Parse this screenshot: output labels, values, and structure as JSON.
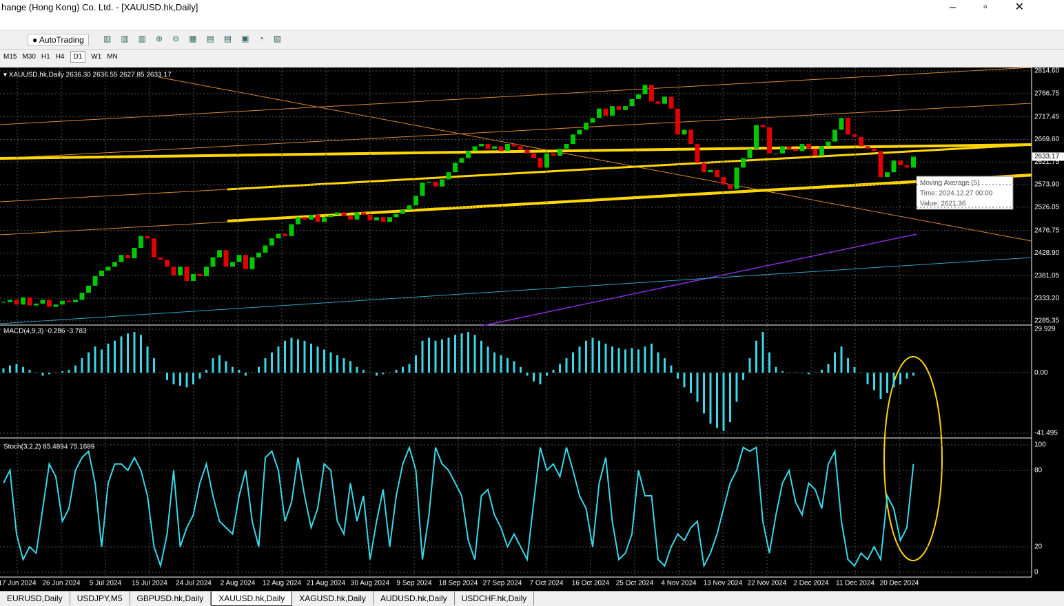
{
  "window": {
    "title": "hange (Hong Kong) Co. Ltd. - [XAUUSD.hk,Daily]"
  },
  "toolbar": {
    "autotrading": "AutoTrading",
    "timeframes": [
      "M15",
      "M30",
      "H1",
      "H4",
      "D1",
      "W1",
      "MN"
    ]
  },
  "chart": {
    "header": "XAUUSD.hk,Daily  2636.30 2636.55 2627.85 2633.17",
    "closes": [
      2325,
      2330,
      2320,
      2335,
      2318,
      2322,
      2330,
      2315,
      2320,
      2328,
      2325,
      2330,
      2345,
      2360,
      2380,
      2392,
      2400,
      2410,
      2425,
      2418,
      2440,
      2465,
      2460,
      2420,
      2415,
      2400,
      2382,
      2400,
      2370,
      2385,
      2380,
      2400,
      2420,
      2435,
      2400,
      2410,
      2425,
      2395,
      2420,
      2430,
      2445,
      2460,
      2470,
      2465,
      2490,
      2505,
      2500,
      2510,
      2495,
      2505,
      2510,
      2515,
      2508,
      2500,
      2515,
      2510,
      2498,
      2505,
      2495,
      2505,
      2512,
      2520,
      2530,
      2550,
      2578,
      2580,
      2570,
      2585,
      2600,
      2620,
      2630,
      2645,
      2655,
      2660,
      2650,
      2655,
      2645,
      2660,
      2655,
      2648,
      2640,
      2630,
      2610,
      2640,
      2635,
      2650,
      2660,
      2680,
      2690,
      2705,
      2715,
      2735,
      2720,
      2740,
      2732,
      2740,
      2755,
      2765,
      2785,
      2750,
      2745,
      2760,
      2735,
      2680,
      2690,
      2660,
      2620,
      2600,
      2605,
      2590,
      2575,
      2565,
      2610,
      2630,
      2650,
      2700,
      2695,
      2640,
      2640,
      2655,
      2650,
      2645,
      2660,
      2650,
      2635,
      2655,
      2665,
      2690,
      2715,
      2680,
      2675,
      2655,
      2650,
      2645,
      2590,
      2600,
      2625,
      2615,
      2610,
      2633.17
    ],
    "ylim": [
      2285.35,
      2814.6
    ],
    "yticks": [
      {
        "value": 2814.6,
        "label": "2814.60"
      },
      2766.75,
      2717.45,
      {
        "value": 2669.6,
        "label": "2669.60"
      },
      2621.75,
      {
        "value": 2573.9,
        "label": "2573.90"
      },
      2526.05,
      2476.75,
      {
        "value": 2428.9,
        "label": "2428.90"
      },
      2381.05,
      {
        "value": 2333.2,
        "label": "2333.20"
      },
      2285.35
    ],
    "price_tag": 2633.17,
    "dates": [
      "17 Jun 2024",
      "26 Jun 2024",
      "5 Jul 2024",
      "15 Jul 2024",
      "24 Jul 2024",
      "2 Aug 2024",
      "12 Aug 2024",
      "21 Aug 2024",
      "30 Aug 2024",
      "9 Sep 2024",
      "18 Sep 2024",
      "27 Sep 2024",
      "7 Oct 2024",
      "16 Oct 2024",
      "25 Oct 2024",
      "4 Nov 2024",
      "13 Nov 2024",
      "22 Nov 2024",
      "2 Dec 2024",
      "11 Dec 2024",
      "20 Dec 2024"
    ],
    "tooltip": {
      "title": "Moving Average (5)",
      "time": "Time: 2024.12.27 00:00",
      "value": "Value: 2621.36"
    }
  },
  "macd": {
    "header": "MACD(4,9,3) -0.286 -3.783",
    "values": [
      3,
      5,
      6,
      4,
      2,
      0,
      -2,
      -1,
      0,
      1,
      2,
      5,
      10,
      14,
      18,
      16,
      20,
      22,
      25,
      27,
      28,
      26,
      18,
      10,
      0,
      -5,
      -8,
      -9,
      -10,
      -8,
      -4,
      2,
      10,
      12,
      8,
      4,
      2,
      -2,
      0,
      4,
      10,
      14,
      18,
      22,
      24,
      23,
      22,
      20,
      18,
      16,
      14,
      12,
      10,
      8,
      4,
      2,
      0,
      -2,
      -1,
      0,
      2,
      4,
      6,
      12,
      22,
      24,
      22,
      23,
      24,
      26,
      27,
      28,
      26,
      22,
      18,
      14,
      12,
      10,
      8,
      4,
      -2,
      -6,
      -8,
      -2,
      2,
      6,
      10,
      14,
      18,
      22,
      24,
      22,
      20,
      18,
      17,
      16,
      17,
      16,
      18,
      20,
      14,
      10,
      5,
      -4,
      -10,
      -14,
      -20,
      -28,
      -35,
      -38,
      -40,
      -34,
      -20,
      -5,
      10,
      22,
      28,
      14,
      4,
      1,
      0,
      0,
      0,
      -1,
      0,
      2,
      6,
      14,
      18,
      10,
      4,
      0,
      -8,
      -12,
      -18,
      -14,
      -10,
      -8,
      -4,
      -2
    ],
    "ylim": [
      -41.495,
      29.929
    ],
    "yticks": [
      29.929,
      {
        "value": 0,
        "label": "0.00"
      },
      -41.495
    ]
  },
  "stoch": {
    "header": "Stoch(3,2,2) 85.4894 75.1689",
    "values": [
      70,
      80,
      30,
      10,
      20,
      15,
      50,
      85,
      75,
      40,
      50,
      80,
      90,
      95,
      70,
      20,
      70,
      85,
      85,
      80,
      90,
      80,
      60,
      20,
      5,
      30,
      80,
      20,
      35,
      45,
      70,
      85,
      60,
      40,
      35,
      30,
      60,
      80,
      40,
      20,
      90,
      95,
      80,
      40,
      55,
      90,
      60,
      35,
      50,
      85,
      80,
      40,
      30,
      70,
      40,
      60,
      10,
      40,
      65,
      20,
      60,
      85,
      98,
      80,
      10,
      45,
      98,
      85,
      80,
      70,
      60,
      25,
      10,
      60,
      65,
      45,
      35,
      20,
      30,
      20,
      10,
      55,
      98,
      80,
      85,
      75,
      98,
      80,
      60,
      50,
      20,
      70,
      90,
      40,
      10,
      15,
      30,
      80,
      60,
      60,
      10,
      5,
      20,
      30,
      25,
      35,
      40,
      5,
      15,
      30,
      50,
      70,
      80,
      98,
      95,
      98,
      40,
      15,
      45,
      70,
      80,
      55,
      45,
      70,
      65,
      50,
      85,
      95,
      40,
      10,
      5,
      15,
      10,
      20,
      10,
      60,
      50,
      25,
      35,
      85
    ],
    "ylim": [
      0,
      100
    ],
    "yticks": [
      100,
      80,
      20,
      0
    ]
  },
  "tabs": [
    "EURUSD,Daily",
    "USDJPY,M5",
    "GBPUSD.hk,Daily",
    "XAUUSD.hk,Daily",
    "XAGUSD.hk,Daily",
    "AUDUSD.hk,Daily",
    "USDCHF.hk,Daily"
  ]
}
